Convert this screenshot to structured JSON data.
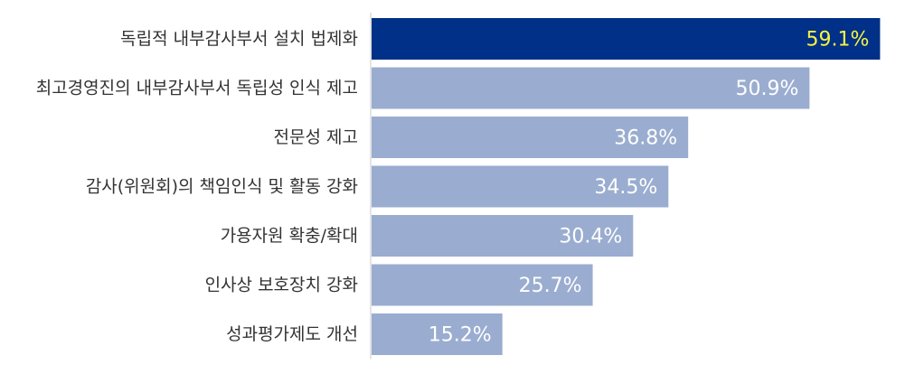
{
  "chart_data": {
    "type": "bar",
    "orientation": "horizontal",
    "title": "",
    "xlabel": "",
    "ylabel": "",
    "categories": [
      "독립적 내부감사부서 설치 법제화",
      "최고경영진의 내부감사부서 독립성 인식 제고",
      "전문성 제고",
      "감사(위원회)의 책임인식 및 활동 강화",
      "가용자원 확충/확대",
      "인사상 보호장치 강화",
      "성과평가제도 개선"
    ],
    "values": [
      59.1,
      50.9,
      36.8,
      34.5,
      30.4,
      25.7,
      15.2
    ],
    "value_labels": [
      "59.1%",
      "50.9%",
      "36.8%",
      "34.5%",
      "30.4%",
      "25.7%",
      "15.2%"
    ],
    "unit": "%",
    "xlim": [
      0,
      62
    ],
    "grid": false,
    "legend": "none",
    "colors": {
      "highlight_bar": "#003087",
      "bar": "#9aadd0",
      "highlight_label": "#f5f542",
      "label": "#ffffff",
      "axis": "#c8c8c8",
      "category_text": "#333333"
    },
    "highlight_index": 0
  }
}
